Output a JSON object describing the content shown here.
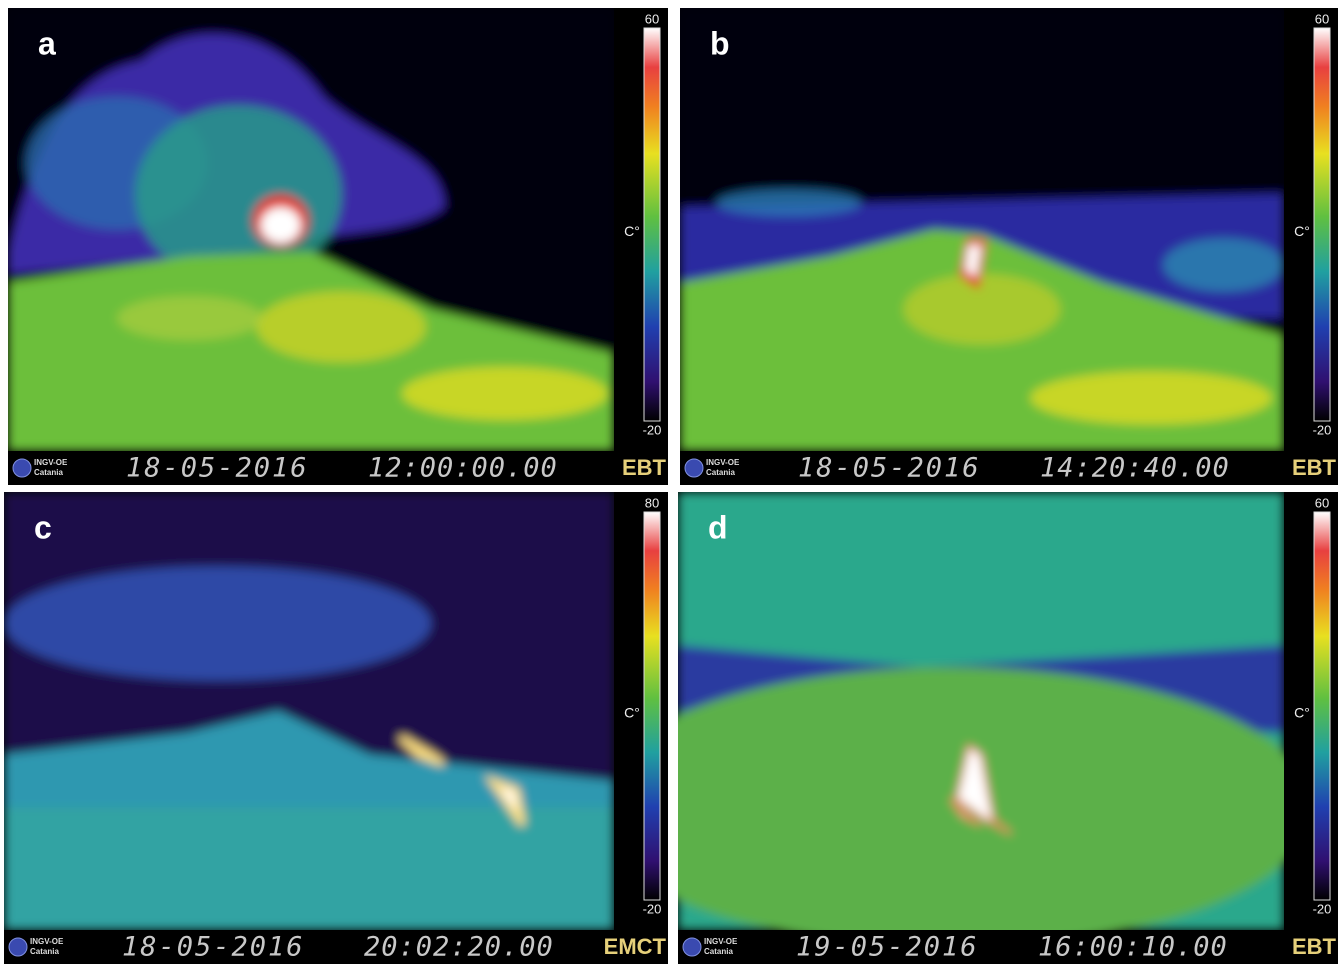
{
  "panels": [
    {
      "label": "a",
      "scale_max": "60",
      "scale_min": "-20",
      "unit": "C°",
      "logo": [
        "INGV-OE",
        "Catania"
      ],
      "date": "18-05-2016",
      "time": "12:00:00.00",
      "camera": "EBT"
    },
    {
      "label": "b",
      "scale_max": "60",
      "scale_min": "-20",
      "unit": "C°",
      "logo": [
        "INGV-OE",
        "Catania"
      ],
      "date": "18-05-2016",
      "time": "14:20:40.00",
      "camera": "EBT"
    },
    {
      "label": "c",
      "scale_max": "80",
      "scale_min": "-20",
      "unit": "C°",
      "logo": [
        "INGV-OE",
        "Catania"
      ],
      "date": "18-05-2016",
      "time": "20:02:20.00",
      "camera": "EMCT"
    },
    {
      "label": "d",
      "scale_max": "60",
      "scale_min": "-20",
      "unit": "C°",
      "logo": [
        "INGV-OE",
        "Catania"
      ],
      "date": "19-05-2016",
      "time": "16:00:10.00",
      "camera": "EBT"
    }
  ]
}
